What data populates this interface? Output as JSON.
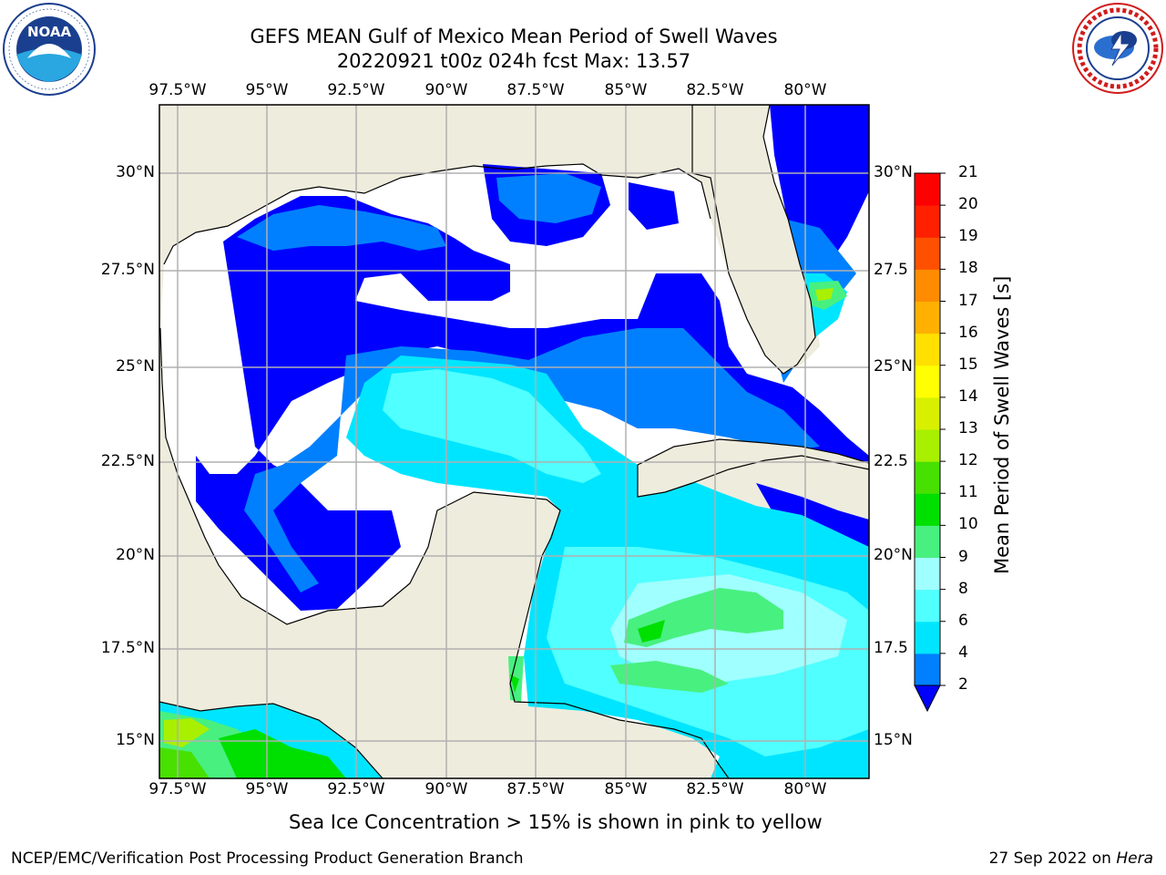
{
  "header": {
    "title_line1": "GEFS MEAN Gulf of Mexico Mean Period of Swell Waves",
    "title_line2": "20220921 t00z 024h fcst   Max: 13.57"
  },
  "logos": {
    "noaa_text": "NOAA",
    "noaa_ring": "NATIONAL OCEANIC AND ATMOSPHERIC ADMINISTRATION · U.S. DEPARTMENT OF COMMERCE",
    "nws_ring": "NATIONAL WEATHER SERVICE"
  },
  "map": {
    "lon_labels": [
      "97.5°W",
      "95°W",
      "92.5°W",
      "90°W",
      "87.5°W",
      "85°W",
      "82.5°W",
      "80°W"
    ],
    "lat_labels_left": [
      "30°N",
      "27.5°N",
      "25°N",
      "22.5°N",
      "20°N",
      "17.5°N",
      "15°N"
    ],
    "lat_labels_right": [
      "30°N",
      "27.5",
      "25°N",
      "22.5",
      "20°N",
      "17.5",
      "15°N"
    ],
    "colors": {
      "land": "#eeecdd",
      "ocean_white": "#ffffff",
      "grid": "#b0b0b0"
    }
  },
  "colorbar": {
    "label": "Mean Period of Swell Waves [s]",
    "ticks": [
      "2",
      "4",
      "6",
      "8",
      "9",
      "10",
      "11",
      "12",
      "13",
      "14",
      "15",
      "16",
      "17",
      "18",
      "19",
      "20",
      "21"
    ],
    "colors": [
      "#0000ff",
      "#0080ff",
      "#00e5ff",
      "#50ffff",
      "#a0ffff",
      "#48f080",
      "#00e000",
      "#48e000",
      "#a8f000",
      "#d8f000",
      "#ffff00",
      "#ffe000",
      "#ffb000",
      "#ff8c00",
      "#ff5000",
      "#ff2000",
      "#ff0000"
    ],
    "under_color": "#0000ff"
  },
  "caption": "Sea Ice Concentration > 15% is shown in pink to yellow",
  "footer": {
    "left": "NCEP/EMC/Verification Post Processing Product Generation Branch",
    "right_date": "27 Sep 2022 on ",
    "right_host": "Hera"
  }
}
